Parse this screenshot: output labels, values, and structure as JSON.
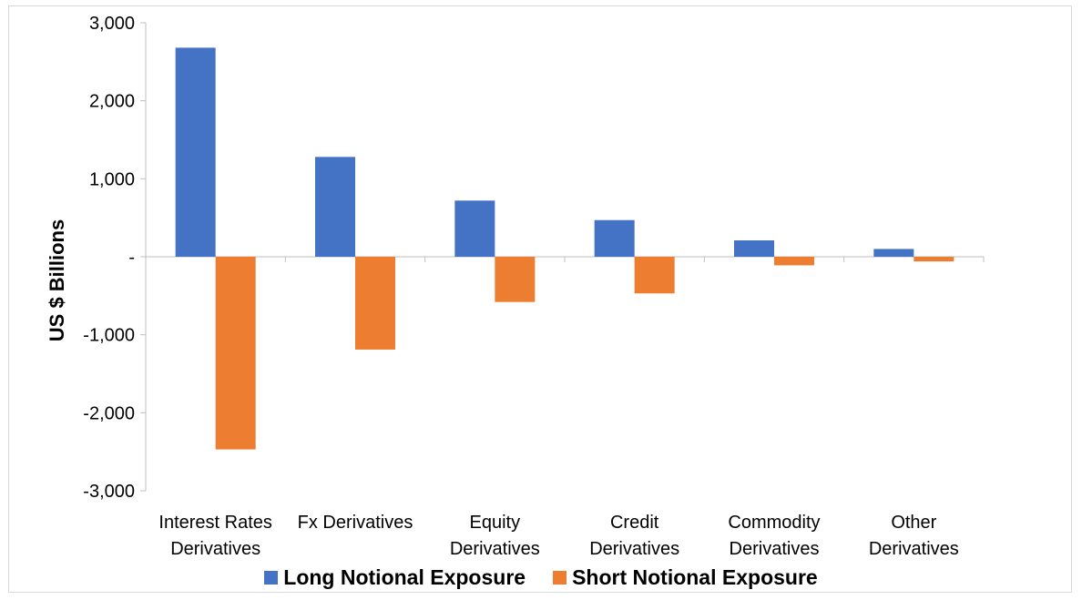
{
  "chart_data": {
    "type": "bar",
    "title": "",
    "xlabel": "",
    "ylabel": "US $ Billions",
    "categories": [
      [
        "Interest Rates",
        "Derivatives"
      ],
      [
        "Fx Derivatives"
      ],
      [
        "Equity",
        "Derivatives"
      ],
      [
        "Credit",
        "Derivatives"
      ],
      [
        "Commodity",
        "Derivatives"
      ],
      [
        "Other",
        "Derivatives"
      ]
    ],
    "series": [
      {
        "name": "Long Notional Exposure",
        "color": "#4472C4",
        "values": [
          2680,
          1280,
          720,
          470,
          210,
          100
        ]
      },
      {
        "name": "Short Notional Exposure",
        "color": "#ED7D31",
        "values": [
          -2470,
          -1190,
          -580,
          -470,
          -110,
          -60
        ]
      }
    ],
    "ylim": [
      -3000,
      3000
    ],
    "yticks": [
      {
        "value": 3000,
        "label": "3,000"
      },
      {
        "value": 2000,
        "label": "2,000"
      },
      {
        "value": 1000,
        "label": "1,000"
      },
      {
        "value": 0,
        "label": "-"
      },
      {
        "value": -1000,
        "label": "-1,000"
      },
      {
        "value": -2000,
        "label": "-2,000"
      },
      {
        "value": -3000,
        "label": "-3,000"
      }
    ],
    "grid": false,
    "legend_position": "bottom"
  }
}
